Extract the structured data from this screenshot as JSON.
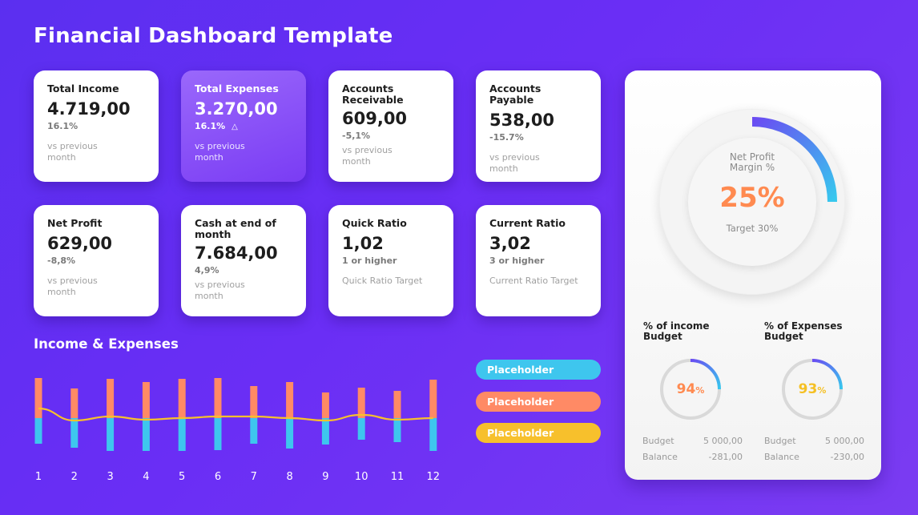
{
  "page": {
    "title": "Financial Dashboard Template"
  },
  "kpis": [
    {
      "title": "Total Income",
      "value": "4.719,00",
      "change": "16.1%",
      "sub": "vs previous month"
    },
    {
      "title": "Total Expenses",
      "value": "3.270,00",
      "change": "16.1%",
      "sub": "vs previous month"
    },
    {
      "title": "Accounts Receivable",
      "value": "609,00",
      "change": "-5,1%",
      "sub": "vs previous month"
    },
    {
      "title": "Accounts Payable",
      "value": "538,00",
      "change": "-15.7%",
      "sub": "vs previous month"
    },
    {
      "title": "Net Profit",
      "value": "629,00",
      "change": "-8,8%",
      "sub": "vs previous month"
    },
    {
      "title": "Cash at end of month",
      "value": "7.684,00",
      "change": "4,9%",
      "sub": "vs previous month"
    },
    {
      "title": "Quick Ratio",
      "value": "1,02",
      "change": "1 or higher",
      "sub": "Quick Ratio Target"
    },
    {
      "title": "Current Ratio",
      "value": "3,02",
      "change": "3 or higher",
      "sub": "Current Ratio Target"
    }
  ],
  "income_expenses": {
    "title": "Income & Expenses",
    "legend": [
      "Placeholder",
      "Placeholder",
      "Placeholder"
    ],
    "colors": {
      "series_a": "#ff8a65",
      "series_b": "#3ec6ee",
      "series_c": "#f7c02c"
    }
  },
  "chart_data": {
    "type": "bar",
    "categories": [
      "1",
      "2",
      "3",
      "4",
      "5",
      "6",
      "7",
      "8",
      "9",
      "10",
      "11",
      "12"
    ],
    "series": [
      {
        "values": [
          50,
          37,
          49,
          45,
          49,
          50,
          40,
          45,
          32,
          38,
          34,
          48
        ]
      },
      {
        "values": [
          32,
          37,
          41,
          41,
          41,
          40,
          32,
          38,
          33,
          27,
          30,
          41
        ]
      },
      {
        "values": [
          18,
          3,
          8,
          4,
          6,
          8,
          8,
          6,
          3,
          10,
          4,
          6
        ]
      }
    ]
  },
  "net_profit_margin": {
    "label": "Net Profit Margin %",
    "value": "25%",
    "percent": 25,
    "target": "Target 30%"
  },
  "budgets": [
    {
      "title": "% of income Budget",
      "value": "94",
      "unit": "%",
      "percent": 94,
      "color": "#ff8a50",
      "budget_label": "Budget",
      "budget_value": "5 000,00",
      "balance_label": "Balance",
      "balance_value": "-281,00"
    },
    {
      "title": "% of Expenses Budget",
      "value": "93",
      "unit": "%",
      "percent": 93,
      "color": "#f5c024",
      "budget_label": "Budget",
      "budget_value": "5 000,00",
      "balance_label": "Balance",
      "balance_value": "-230,00"
    }
  ]
}
